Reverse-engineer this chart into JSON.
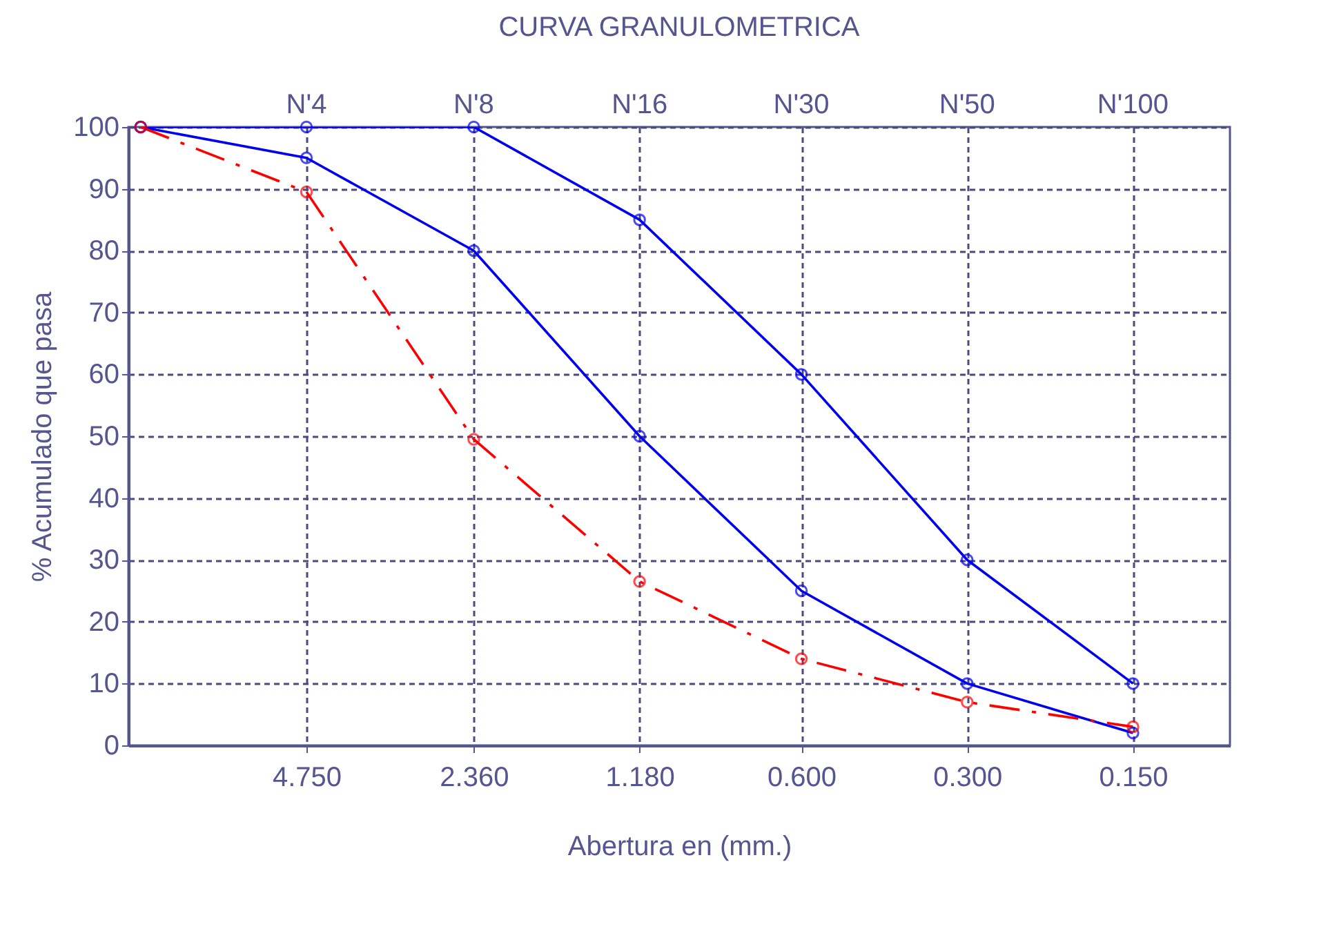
{
  "chart_data": {
    "type": "line",
    "title": "CURVA GRANULOMETRICA",
    "xlabel": "Abertura en (mm.)",
    "ylabel": "% Acumulado que pasa",
    "x": [
      9.5,
      4.75,
      2.36,
      1.18,
      0.6,
      0.3,
      0.15
    ],
    "series": [
      {
        "color": "#0000ee",
        "values": [
          100,
          100,
          100,
          85,
          60,
          30,
          10
        ]
      },
      {
        "color": "#0000ee",
        "values": [
          100,
          95,
          80,
          50,
          25,
          10,
          2
        ]
      },
      {
        "color": "#ff0000",
        "values": [
          100,
          89.5,
          49.5,
          26.5,
          14,
          7,
          3
        ],
        "line_style": "dashed"
      }
    ],
    "log": "x",
    "xlim": [
      10,
      0.1
    ],
    "xticks": [
      {
        "value": 4.75,
        "label": "4.750"
      },
      {
        "value": 2.36,
        "label": "2.360"
      },
      {
        "value": 1.18,
        "label": "1.180"
      },
      {
        "value": 0.6,
        "label": "0.600"
      },
      {
        "value": 0.3,
        "label": "0.300"
      },
      {
        "value": 0.15,
        "label": "0.150"
      }
    ],
    "annotations": [
      "N'4",
      "N'8",
      "N'16",
      "N'30",
      "N'50",
      "N'100"
    ],
    "ylim": [
      0,
      100
    ],
    "yticks": [
      0,
      10,
      20,
      30,
      40,
      50,
      60,
      70,
      80,
      90,
      100
    ],
    "grid": true,
    "legend": false,
    "marker": "circle",
    "line_style": "solid"
  }
}
